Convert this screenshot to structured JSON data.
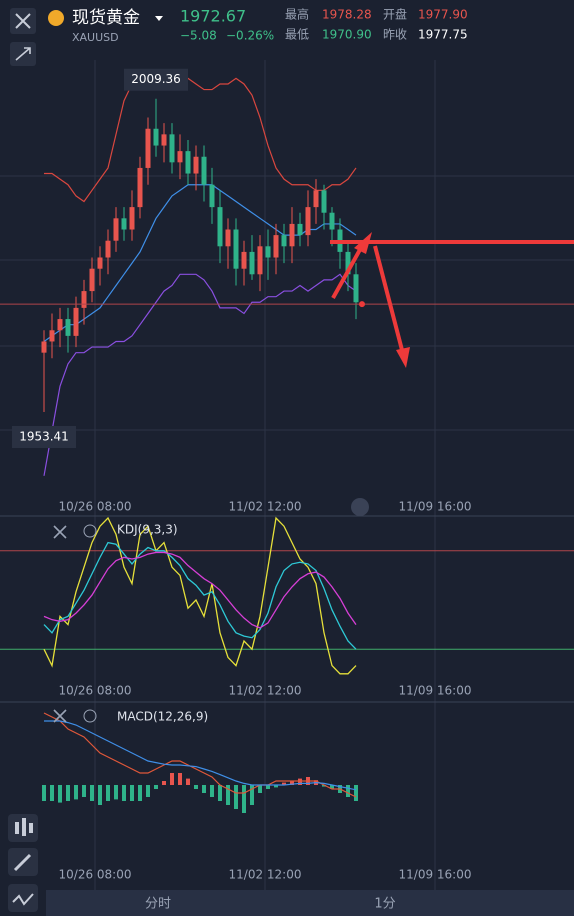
{
  "header": {
    "name": "现货黄金",
    "symbol": "XAUUSD",
    "price": 1972.67,
    "change": "−5.08",
    "change_pct": "−0.26%",
    "stats": [
      {
        "label": "最高",
        "value": "1978.28"
      },
      {
        "label": "开盘",
        "value": "1977.90"
      },
      {
        "label": "最低",
        "value": "1970.90"
      },
      {
        "label": "昨收",
        "value": "1977.75"
      }
    ]
  },
  "chart_data": [
    {
      "type": "candlestick",
      "xtick_labels": [
        "10/26 08:00",
        "11/02 12:00",
        "11/09 16:00"
      ],
      "up_color": "#e8554e",
      "down_color": "#2fb38a",
      "ylim": [
        1935,
        2027
      ],
      "open": [
        1964,
        1966,
        1968,
        1970,
        1967,
        1972,
        1975,
        1979,
        1981,
        1984,
        1988,
        1986,
        1990,
        1997,
        2004,
        2001,
        2003,
        1998,
        2000,
        1996,
        1999,
        1994,
        1990,
        1983,
        1986,
        1979,
        1982,
        1978,
        1983,
        1981,
        1985,
        1983,
        1987,
        1985,
        1990,
        1993,
        1989,
        1986,
        1982,
        1978
      ],
      "high": [
        1968,
        1971,
        1972,
        1972,
        1974,
        1977,
        1981,
        1983,
        1986,
        1990,
        1990,
        1993,
        1999,
        2006,
        2009.36,
        2005,
        2005,
        2003,
        2002,
        2001,
        2001,
        1997,
        1993,
        1988,
        1988,
        1984,
        1985,
        1985,
        1986,
        1987,
        1987,
        1990,
        1989,
        1993,
        1995,
        1994,
        1990,
        1988,
        1984,
        1980
      ],
      "low": [
        1953.41,
        1963,
        1965,
        1964,
        1965,
        1969,
        1973,
        1976,
        1978,
        1982,
        1984,
        1984,
        1988,
        1994,
        1999,
        1998,
        1996,
        1995,
        1994,
        1993,
        1991,
        1987,
        1980,
        1979,
        1976,
        1976,
        1977,
        1975,
        1977,
        1978,
        1980,
        1980,
        1983,
        1983,
        1987,
        1986,
        1983,
        1979,
        1975,
        1970
      ],
      "close": [
        1966,
        1968,
        1970,
        1967,
        1972,
        1975,
        1979,
        1981,
        1984,
        1988,
        1986,
        1990,
        1997,
        2004,
        2001,
        2003,
        1998,
        2000,
        1996,
        1999,
        1994,
        1990,
        1983,
        1986,
        1979,
        1982,
        1978,
        1983,
        1981,
        1985,
        1983,
        1987,
        1985,
        1990,
        1993,
        1989,
        1986,
        1982,
        1978,
        1973
      ],
      "overlays": [
        {
          "color": "#d9473f",
          "values": [
            1996,
            1996,
            1995,
            1994,
            1992,
            1991,
            1993,
            1995,
            1997,
            2003,
            2009,
            2012,
            2013,
            2012,
            2012,
            2013,
            2014,
            2013,
            2013,
            2012,
            2011,
            2011,
            2012,
            2012,
            2013,
            2012,
            2010,
            2006,
            2001,
            1997,
            1995,
            1994,
            1994,
            1994,
            1993,
            1993,
            1994,
            1994,
            1995,
            1997
          ]
        },
        {
          "color": "#8a4fe0",
          "values": [
            1942,
            1950,
            1958,
            1962,
            1964,
            1964,
            1965,
            1965,
            1965,
            1966,
            1966,
            1967,
            1969,
            1971,
            1973,
            1975,
            1976,
            1978,
            1978,
            1978,
            1977,
            1975,
            1972,
            1972,
            1972,
            1971,
            1973,
            1973,
            1974,
            1974,
            1975,
            1975,
            1976,
            1975,
            1976,
            1977,
            1977,
            1978,
            1976,
            1975
          ]
        },
        {
          "color": "#3f8fe8",
          "values": [
            1966,
            1967,
            1968,
            1969,
            1969,
            1970,
            1971,
            1972,
            1974,
            1976,
            1978,
            1980,
            1982,
            1985,
            1988,
            1990,
            1992,
            1993,
            1994,
            1994,
            1994,
            1994,
            1993,
            1992,
            1991,
            1990,
            1989,
            1988,
            1987,
            1986,
            1985,
            1985,
            1985,
            1986,
            1986,
            1987,
            1987,
            1987,
            1986,
            1985
          ]
        }
      ]
    },
    {
      "type": "line",
      "title": "KDJ(9,3,3)",
      "xtick_labels": [
        "10/26 08:00",
        "11/02 12:00",
        "11/09 16:00"
      ],
      "ylim": [
        0,
        100
      ],
      "ref_lines": [
        {
          "value": 80,
          "color": "#b0454a"
        },
        {
          "value": 20,
          "color": "#3fae6a"
        }
      ],
      "series": [
        {
          "color": "#e6e03a",
          "values": [
            20,
            10,
            40,
            35,
            55,
            70,
            85,
            95,
            100,
            90,
            70,
            60,
            90,
            95,
            80,
            85,
            70,
            65,
            45,
            50,
            40,
            60,
            30,
            15,
            10,
            25,
            20,
            40,
            70,
            100,
            95,
            85,
            75,
            70,
            60,
            30,
            10,
            5,
            5,
            10
          ]
        },
        {
          "color": "#2ec9d6",
          "values": [
            35,
            30,
            38,
            40,
            48,
            56,
            66,
            76,
            85,
            84,
            78,
            72,
            78,
            82,
            80,
            80,
            76,
            71,
            63,
            59,
            53,
            55,
            47,
            37,
            30,
            28,
            27,
            32,
            42,
            58,
            68,
            72,
            73,
            72,
            68,
            57,
            44,
            34,
            25,
            20
          ]
        },
        {
          "color": "#d63fd6",
          "values": [
            40,
            38,
            37,
            38,
            42,
            47,
            53,
            61,
            69,
            74,
            76,
            75,
            76,
            78,
            79,
            79,
            78,
            76,
            71,
            67,
            63,
            60,
            56,
            50,
            44,
            39,
            35,
            33,
            36,
            44,
            52,
            58,
            63,
            66,
            67,
            64,
            58,
            51,
            42,
            35
          ]
        }
      ]
    },
    {
      "type": "macd",
      "title": "MACD(12,26,9)",
      "xtick_labels": [
        "10/26 08:00",
        "11/02 12:00",
        "11/09 16:00"
      ],
      "ylim": [
        -10,
        10
      ],
      "up_color": "#e8554e",
      "down_color": "#2fb38a",
      "series": [
        {
          "color": "#e0583a",
          "values": [
            9,
            8.5,
            8,
            7,
            6.5,
            6,
            5,
            4,
            3.5,
            3,
            2.5,
            2,
            1.5,
            1.5,
            2,
            2.5,
            3,
            3,
            2.5,
            2,
            1.5,
            1,
            0,
            -0.5,
            -1,
            -1,
            -0.5,
            0,
            0,
            0.5,
            0.5,
            0.5,
            0.5,
            0.5,
            0.5,
            0,
            -0.5,
            -0.5,
            -1,
            -1.5
          ]
        },
        {
          "color": "#3f8fe8",
          "values": [
            8,
            8,
            8,
            7.8,
            7.5,
            7,
            6.5,
            6,
            5.5,
            5,
            4.5,
            4,
            3.5,
            3,
            2.8,
            2.6,
            2.5,
            2.5,
            2.4,
            2.3,
            2,
            1.7,
            1.3,
            0.9,
            0.5,
            0.2,
            0,
            0,
            0,
            0,
            0,
            0.1,
            0.2,
            0.2,
            0.3,
            0.2,
            0,
            -0.2,
            -0.4,
            -0.6
          ]
        }
      ],
      "histogram": [
        -2,
        -2,
        -2.2,
        -2,
        -1.8,
        -1.5,
        -2,
        -2.5,
        -2,
        -1.8,
        -2,
        -2,
        -2,
        -1.5,
        -0.5,
        0.5,
        1.5,
        1.5,
        0.8,
        -0.5,
        -1,
        -1.5,
        -2,
        -2.5,
        -3,
        -3.5,
        -2.5,
        -1,
        -0.5,
        -0.3,
        0.3,
        0.5,
        0.8,
        1,
        0.6,
        -0.2,
        -0.5,
        -1,
        -1.5,
        -2
      ]
    }
  ],
  "tabs": [
    "分时",
    "1分"
  ]
}
